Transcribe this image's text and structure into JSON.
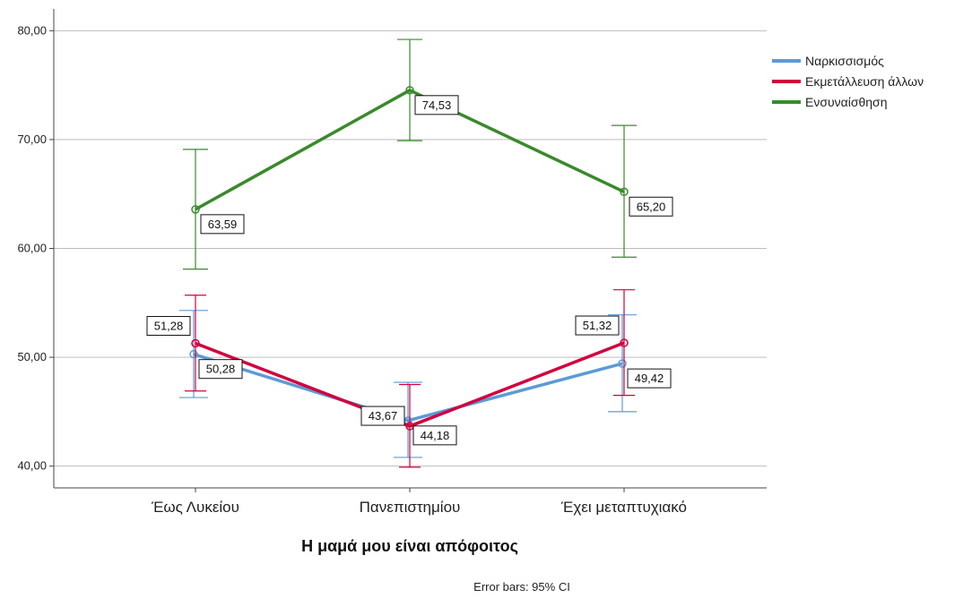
{
  "chart_data": {
    "type": "line",
    "categories": [
      "Έως Λυκείου",
      "Πανεπιστημίου",
      "Έχει μεταπτυχιακό"
    ],
    "xlabel": "Η μαμά μου είναι απόφοιτος",
    "ylabel": "",
    "ylim": [
      38,
      82
    ],
    "yticks": [
      40,
      50,
      60,
      70,
      80
    ],
    "ytick_labels": [
      "40,00",
      "50,00",
      "60,00",
      "70,00",
      "80,00"
    ],
    "grid": true,
    "legend_position": "top-right",
    "note": "Error bars: 95% CI",
    "series": [
      {
        "name": "Ναρκισσισμός",
        "color": "#5b9bd5",
        "values": [
          50.28,
          44.18,
          49.42
        ],
        "labels": [
          "50,28",
          "44,18",
          "49,42"
        ],
        "ci_low": [
          46.3,
          40.8,
          45.0
        ],
        "ci_high": [
          54.3,
          47.7,
          53.9
        ]
      },
      {
        "name": "Εκμετάλλευση άλλων",
        "color": "#d2003f",
        "values": [
          51.28,
          43.67,
          51.32
        ],
        "labels": [
          "51,28",
          "43,67",
          "51,32"
        ],
        "ci_low": [
          46.9,
          39.9,
          46.5
        ],
        "ci_high": [
          55.7,
          47.5,
          56.2
        ]
      },
      {
        "name": "Ενσυναίσθηση",
        "color": "#3a8a2b",
        "values": [
          63.59,
          74.53,
          65.2
        ],
        "labels": [
          "63,59",
          "74,53",
          "65,20"
        ],
        "ci_low": [
          58.1,
          69.9,
          59.2
        ],
        "ci_high": [
          69.1,
          79.2,
          71.3
        ]
      }
    ]
  }
}
